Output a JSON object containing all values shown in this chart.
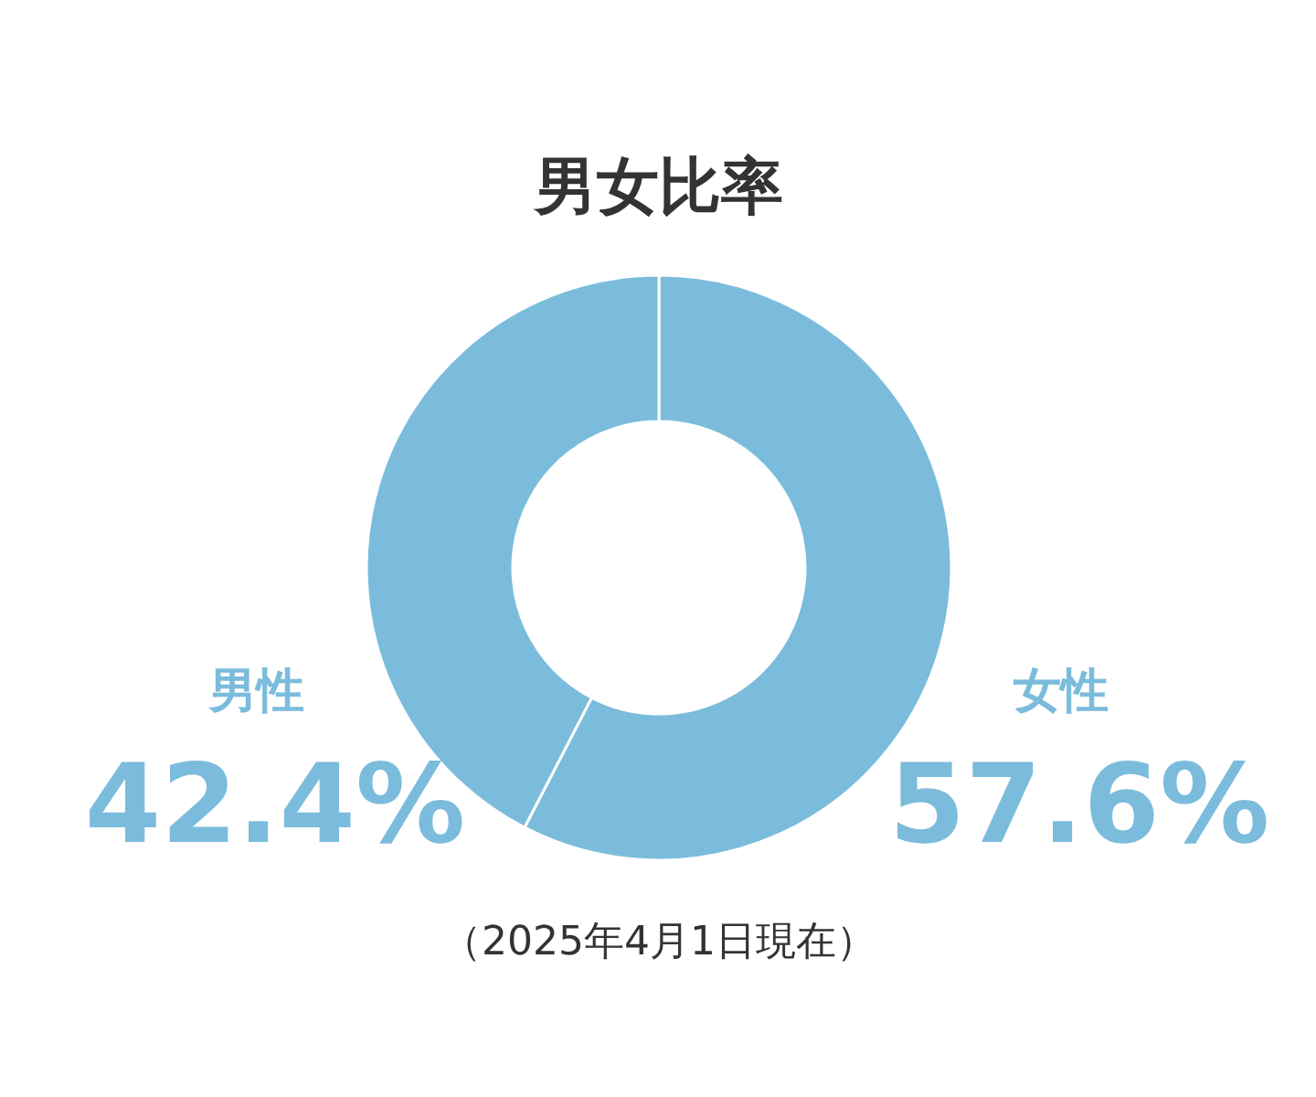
{
  "chart_data": {
    "type": "donut",
    "title": "男女比率",
    "categories": [
      "女性",
      "男性"
    ],
    "values": [
      57.6,
      42.4
    ],
    "value_labels": [
      "57.6%",
      "42.4%"
    ],
    "colors": [
      "#7bbcdc",
      "#7bbcdc"
    ],
    "annotations": [
      "（2025年4月1日現在）"
    ]
  }
}
